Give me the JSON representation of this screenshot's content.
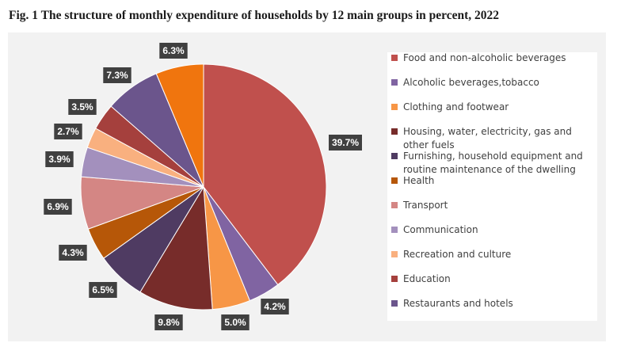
{
  "title": "Fig. 1 The structure of monthly expenditure of households by 12 main groups in percent, 2022",
  "chart_data": {
    "type": "pie",
    "legend_position": "right",
    "slices": [
      {
        "name": "Food and non-alcoholic beverages",
        "value": 39.7,
        "label": "39.7%",
        "color": "#c0504d"
      },
      {
        "name": "Alcoholic beverages,tobacco",
        "value": 4.2,
        "label": "4.2%",
        "color": "#8064a2"
      },
      {
        "name": "Clothing and footwear",
        "value": 5.0,
        "label": "5.0%",
        "color": "#f79646"
      },
      {
        "name": "Housing, water, electricity, gas and other fuels",
        "value": 9.8,
        "label": "9.8%",
        "color": "#772c2a"
      },
      {
        "name": "Furnishing, household equipment and routine maintenance of the dwelling",
        "value": 6.5,
        "label": "6.5%",
        "color": "#4f3b62"
      },
      {
        "name": "Health",
        "value": 4.3,
        "label": "4.3%",
        "color": "#b65708"
      },
      {
        "name": "Transport",
        "value": 6.9,
        "label": "6.9%",
        "color": "#d48684"
      },
      {
        "name": "Communication",
        "value": 3.9,
        "label": "3.9%",
        "color": "#a390bd"
      },
      {
        "name": "Recreation and culture",
        "value": 2.7,
        "label": "2.7%",
        "color": "#f9b07f"
      },
      {
        "name": "Education",
        "value": 3.5,
        "label": "3.5%",
        "color": "#a5403d"
      },
      {
        "name": "Restaurants and hotels",
        "value": 7.3,
        "label": "7.3%",
        "color": "#6b558c"
      },
      {
        "name": "",
        "value": 6.3,
        "label": "6.3%",
        "color": "#f0750e"
      }
    ]
  }
}
